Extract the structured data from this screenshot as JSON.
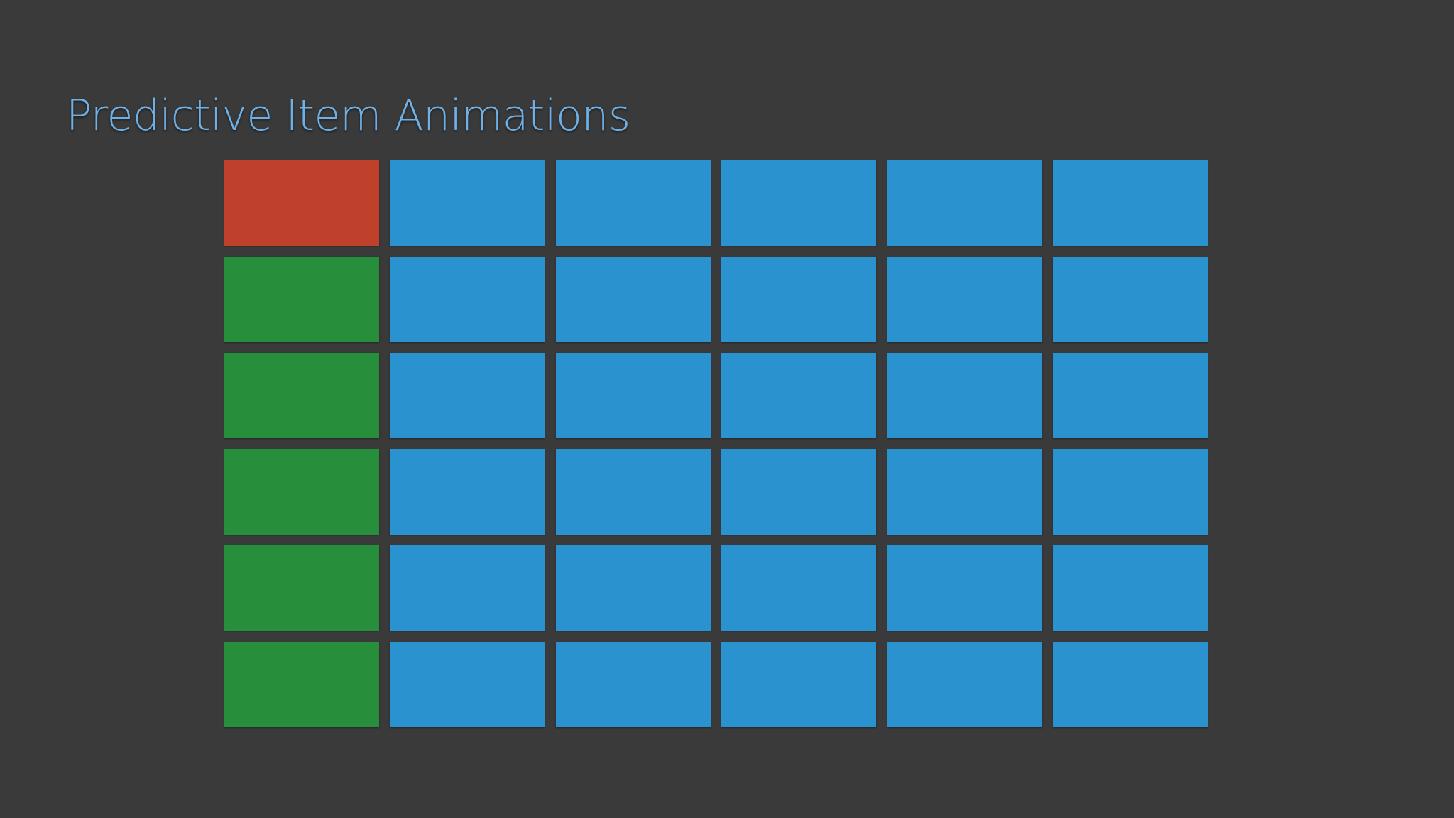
{
  "slide": {
    "title": "Predictive Item Animations"
  },
  "colors": {
    "background": "#3a3a3b",
    "title": "#6fb1e6",
    "red": "#c0412b",
    "green": "#278e3b",
    "blue": "#2a93cf"
  },
  "grid": {
    "rows": 6,
    "columns": 6,
    "cells": [
      [
        "red",
        "blue",
        "blue",
        "blue",
        "blue",
        "blue"
      ],
      [
        "green",
        "blue",
        "blue",
        "blue",
        "blue",
        "blue"
      ],
      [
        "green",
        "blue",
        "blue",
        "blue",
        "blue",
        "blue"
      ],
      [
        "green",
        "blue",
        "blue",
        "blue",
        "blue",
        "blue"
      ],
      [
        "green",
        "blue",
        "blue",
        "blue",
        "blue",
        "blue"
      ],
      [
        "green",
        "blue",
        "blue",
        "blue",
        "blue",
        "blue"
      ]
    ]
  }
}
